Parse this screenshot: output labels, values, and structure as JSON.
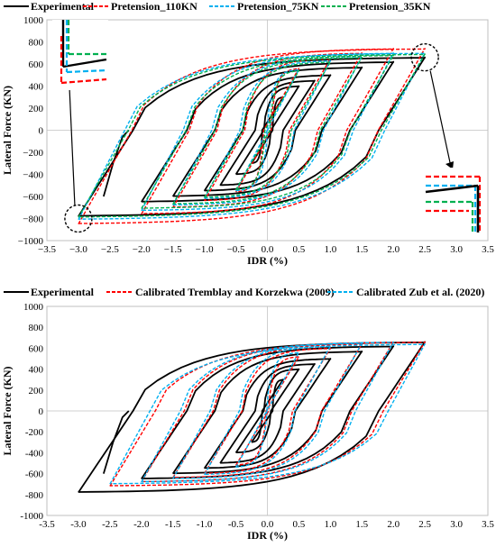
{
  "chart_data": [
    {
      "type": "line",
      "title": "",
      "xlabel": "IDR (%)",
      "ylabel": "Lateral Force (KN)",
      "xlim": [
        -3.5,
        3.5
      ],
      "ylim": [
        -1000,
        1000
      ],
      "xticks": [
        "−3.5",
        "−3.0",
        "−2.5",
        "−2.0",
        "−1.5",
        "−1.0",
        "−0.5",
        "0.0",
        "0.5",
        "1.0",
        "1.5",
        "2.0",
        "2.5",
        "3.0",
        "3.5"
      ],
      "yticks": [
        "1000",
        "800",
        "600",
        "400",
        "200",
        "0",
        "−200",
        "−400",
        "−600",
        "−800",
        "−1000"
      ],
      "grid": "major-horizontal-and-vertical",
      "legend": "top",
      "series": [
        {
          "name": "Experimental",
          "color": "#000000",
          "style": "solid",
          "cycles": [
            {
              "peak_drift": 0.25,
              "peak_force": 300,
              "neg_drift": -0.25,
              "neg_force": -300
            },
            {
              "peak_drift": 0.5,
              "peak_force": 400,
              "neg_drift": -0.5,
              "neg_force": -400
            },
            {
              "peak_drift": 0.75,
              "peak_force": 450,
              "neg_drift": -0.75,
              "neg_force": -500
            },
            {
              "peak_drift": 1.0,
              "peak_force": 500,
              "neg_drift": -1.0,
              "neg_force": -550
            },
            {
              "peak_drift": 1.5,
              "peak_force": 570,
              "neg_drift": -1.5,
              "neg_force": -600
            },
            {
              "peak_drift": 2.0,
              "peak_force": 620,
              "neg_drift": -2.0,
              "neg_force": -650
            },
            {
              "peak_drift": 2.5,
              "peak_force": 660,
              "neg_drift": -3.0,
              "neg_force": -780
            }
          ]
        },
        {
          "name": "Pretension_110KN",
          "color": "#ff0000",
          "style": "dashed",
          "cycles": [
            {
              "peak_drift": 0.5,
              "peak_force": 560,
              "neg_drift": -0.5,
              "neg_force": -560
            },
            {
              "peak_drift": 1.0,
              "peak_force": 650,
              "neg_drift": -1.0,
              "neg_force": -640
            },
            {
              "peak_drift": 1.5,
              "peak_force": 700,
              "neg_drift": -1.5,
              "neg_force": -700
            },
            {
              "peak_drift": 2.0,
              "peak_force": 740,
              "neg_drift": -2.0,
              "neg_force": -760
            },
            {
              "peak_drift": 2.5,
              "peak_force": 740,
              "neg_drift": -3.0,
              "neg_force": -850
            }
          ]
        },
        {
          "name": "Pretension_75KN",
          "color": "#00b0f0",
          "style": "dashed",
          "cycles": [
            {
              "peak_drift": 0.5,
              "peak_force": 550,
              "neg_drift": -0.5,
              "neg_force": -550
            },
            {
              "peak_drift": 1.0,
              "peak_force": 630,
              "neg_drift": -1.0,
              "neg_force": -620
            },
            {
              "peak_drift": 1.5,
              "peak_force": 670,
              "neg_drift": -1.5,
              "neg_force": -680
            },
            {
              "peak_drift": 2.0,
              "peak_force": 700,
              "neg_drift": -2.0,
              "neg_force": -730
            },
            {
              "peak_drift": 2.5,
              "peak_force": 700,
              "neg_drift": -3.0,
              "neg_force": -810
            }
          ]
        },
        {
          "name": "Pretension_35KN",
          "color": "#00b050",
          "style": "dashed",
          "cycles": [
            {
              "peak_drift": 0.5,
              "peak_force": 540,
              "neg_drift": -0.5,
              "neg_force": -540
            },
            {
              "peak_drift": 1.0,
              "peak_force": 620,
              "neg_drift": -1.0,
              "neg_force": -610
            },
            {
              "peak_drift": 1.5,
              "peak_force": 660,
              "neg_drift": -1.5,
              "neg_force": -670
            },
            {
              "peak_drift": 2.0,
              "peak_force": 680,
              "neg_drift": -2.0,
              "neg_force": -710
            },
            {
              "peak_drift": 2.5,
              "peak_force": 690,
              "neg_drift": -3.0,
              "neg_force": -790
            }
          ]
        }
      ],
      "annotations": [
        {
          "type": "dashed-circle",
          "x": -3.0,
          "y": -800
        },
        {
          "type": "dashed-circle",
          "x": 2.5,
          "y": 660
        }
      ]
    },
    {
      "type": "line",
      "title": "",
      "xlabel": "IDR (%)",
      "ylabel": "Lateral Force (KN)",
      "xlim": [
        -3.5,
        3.5
      ],
      "ylim": [
        -1000,
        1000
      ],
      "xticks": [
        "-3.5",
        "-3.0",
        "-2.5",
        "-2.0",
        "-1.5",
        "-1.0",
        "-0.5",
        "0.0",
        "0.5",
        "1.0",
        "1.5",
        "2.0",
        "2.5",
        "3.0",
        "3.5"
      ],
      "yticks": [
        "1000",
        "800",
        "600",
        "400",
        "200",
        "0",
        "-200",
        "-400",
        "-600",
        "-800",
        "-1000"
      ],
      "grid": "major-horizontal-and-vertical",
      "legend": "top",
      "series": [
        {
          "name": "Experimental",
          "color": "#000000",
          "style": "solid",
          "cycles": [
            {
              "peak_drift": 0.25,
              "peak_force": 300,
              "neg_drift": -0.25,
              "neg_force": -300
            },
            {
              "peak_drift": 0.5,
              "peak_force": 400,
              "neg_drift": -0.5,
              "neg_force": -400
            },
            {
              "peak_drift": 0.75,
              "peak_force": 450,
              "neg_drift": -0.75,
              "neg_force": -500
            },
            {
              "peak_drift": 1.0,
              "peak_force": 500,
              "neg_drift": -1.0,
              "neg_force": -550
            },
            {
              "peak_drift": 1.5,
              "peak_force": 570,
              "neg_drift": -1.5,
              "neg_force": -600
            },
            {
              "peak_drift": 2.0,
              "peak_force": 620,
              "neg_drift": -2.0,
              "neg_force": -650
            },
            {
              "peak_drift": 2.5,
              "peak_force": 660,
              "neg_drift": -3.0,
              "neg_force": -780
            }
          ]
        },
        {
          "name": "Calibrated Tremblay and Korzekwa (2009)",
          "color": "#ff0000",
          "style": "dashed",
          "cycles": [
            {
              "peak_drift": 0.5,
              "peak_force": 520,
              "neg_drift": -0.5,
              "neg_force": -520
            },
            {
              "peak_drift": 1.0,
              "peak_force": 600,
              "neg_drift": -1.0,
              "neg_force": -600
            },
            {
              "peak_drift": 1.5,
              "peak_force": 640,
              "neg_drift": -1.5,
              "neg_force": -640
            },
            {
              "peak_drift": 2.0,
              "peak_force": 660,
              "neg_drift": -2.0,
              "neg_force": -680
            },
            {
              "peak_drift": 2.5,
              "peak_force": 660,
              "neg_drift": -2.5,
              "neg_force": -720
            }
          ]
        },
        {
          "name": "Calibrated Zub et al. (2020)",
          "color": "#00b0f0",
          "style": "dashed",
          "cycles": [
            {
              "peak_drift": 0.5,
              "peak_force": 560,
              "neg_drift": -0.5,
              "neg_force": -540
            },
            {
              "peak_drift": 1.0,
              "peak_force": 620,
              "neg_drift": -1.0,
              "neg_force": -610
            },
            {
              "peak_drift": 1.5,
              "peak_force": 650,
              "neg_drift": -1.5,
              "neg_force": -650
            },
            {
              "peak_drift": 2.0,
              "peak_force": 660,
              "neg_drift": -2.0,
              "neg_force": -680
            },
            {
              "peak_drift": 2.5,
              "peak_force": 640,
              "neg_drift": -2.5,
              "neg_force": -700
            }
          ]
        }
      ]
    }
  ]
}
